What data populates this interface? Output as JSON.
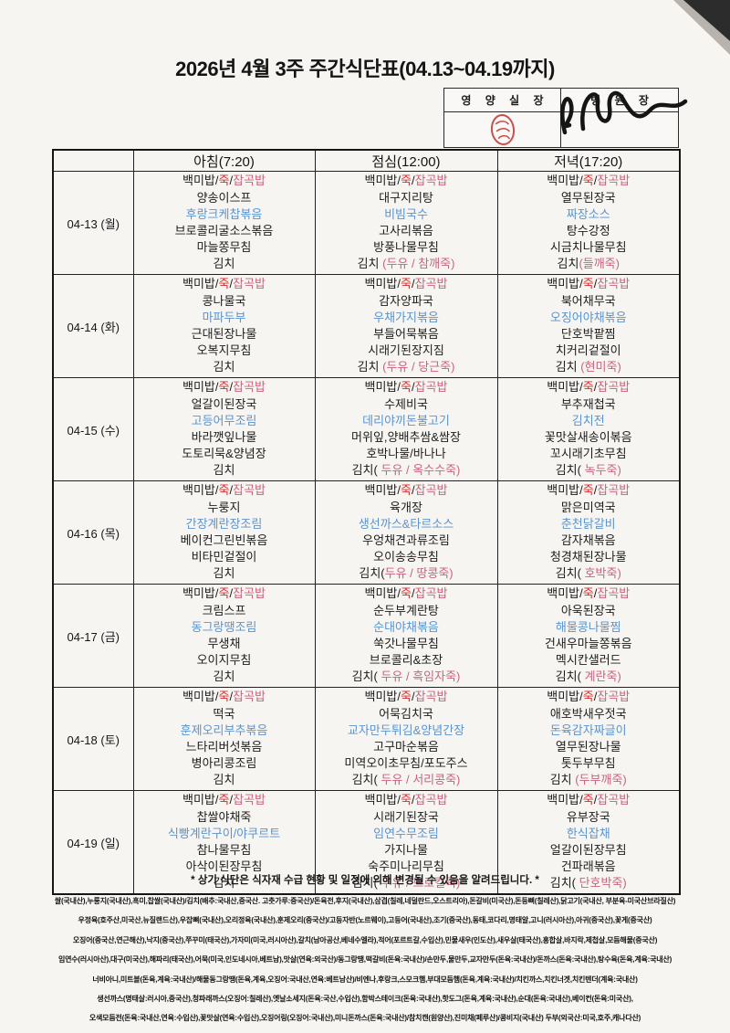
{
  "page": {
    "title": "2026년 4월 3주 주간식단표(04.13~04.19까지)"
  },
  "approval": {
    "nutrition_label": "영 양 실 장",
    "director_label": "병 원 장",
    "stamp_icon": "red-seal-stamp",
    "signature_icon": "handwritten-signature"
  },
  "colors": {
    "ink": "#1c1c1c",
    "porridge_red": "#d92b2b",
    "note_rose": "#c9637c",
    "main_dish_blue": "#5b93cd",
    "stamp_red": "#c23b34"
  },
  "table": {
    "headers": {
      "date": "",
      "breakfast": "아침(7:20)",
      "lunch": "점심(12:00)",
      "dinner": "저녁(17:20)"
    },
    "rice_line": [
      {
        "t": "백미밥",
        "c": "ink"
      },
      {
        "t": "/",
        "c": "ink"
      },
      {
        "t": "죽",
        "c": "red"
      },
      {
        "t": "/",
        "c": "ink"
      },
      {
        "t": "잡곡밥",
        "c": "rose"
      }
    ],
    "days": [
      {
        "date": "04-13 (월)",
        "breakfast": [
          {
            "t": "양송이스프"
          },
          {
            "t": "후랑크케찹볶음",
            "s": "m"
          },
          {
            "t": "브로콜리굴소스볶음"
          },
          {
            "t": "마늘쫑무침"
          },
          {
            "t": "김치"
          }
        ],
        "lunch": [
          {
            "t": "대구지리탕"
          },
          {
            "t": "비빔국수",
            "s": "m"
          },
          {
            "t": "고사리볶음"
          },
          {
            "t": "방풍나물무침"
          },
          {
            "t": "김치 ",
            "n": "(두유 / 참깨죽)"
          }
        ],
        "dinner": [
          {
            "t": "열무된장국"
          },
          {
            "t": "짜장소스",
            "s": "m"
          },
          {
            "t": "탕수강정"
          },
          {
            "t": "시금치나물무침"
          },
          {
            "t": "김치",
            "n": "(들깨죽)"
          }
        ]
      },
      {
        "date": "04-14 (화)",
        "breakfast": [
          {
            "t": "콩나물국"
          },
          {
            "t": "마파두부",
            "s": "m"
          },
          {
            "t": "근대된장나물"
          },
          {
            "t": "오복지무침"
          },
          {
            "t": "김치"
          }
        ],
        "lunch": [
          {
            "t": "감자양파국"
          },
          {
            "t": "우채가지볶음",
            "s": "m"
          },
          {
            "t": "부들어묵볶음"
          },
          {
            "t": "시래기된장지짐"
          },
          {
            "t": "김치 ",
            "n": "(두유 / 당근죽)"
          }
        ],
        "dinner": [
          {
            "t": "북어채무국"
          },
          {
            "t": "오징어야채볶음",
            "s": "m"
          },
          {
            "t": "단호박팥찜"
          },
          {
            "t": "치커리겉절이"
          },
          {
            "t": "김치 ",
            "n": "(현미죽)"
          }
        ]
      },
      {
        "date": "04-15 (수)",
        "breakfast": [
          {
            "t": "얼갈이된장국"
          },
          {
            "t": "고등어무조림",
            "s": "m"
          },
          {
            "t": "바라깻잎나물"
          },
          {
            "t": "도토리묵&양념장"
          },
          {
            "t": "김치"
          }
        ],
        "lunch": [
          {
            "t": "수제비국"
          },
          {
            "t": "데리야끼돈불고기",
            "s": "m"
          },
          {
            "t": "머위잎,양배추쌈&쌈장"
          },
          {
            "t": "호박나물/바나나"
          },
          {
            "t": "김치(",
            "n": " 두유 / 옥수수죽)"
          }
        ],
        "dinner": [
          {
            "t": "부추재첩국"
          },
          {
            "t": "김치전",
            "s": "m"
          },
          {
            "t": "꽃맛살새송이볶음"
          },
          {
            "t": "꼬시래기초무침"
          },
          {
            "t": "김치(",
            "n": " 녹두죽)"
          }
        ]
      },
      {
        "date": "04-16 (목)",
        "breakfast": [
          {
            "t": "누룽지"
          },
          {
            "t": "간장계란장조림",
            "s": "m"
          },
          {
            "t": "베이컨그린빈볶음"
          },
          {
            "t": "비타민겉절이"
          },
          {
            "t": "김치"
          }
        ],
        "lunch": [
          {
            "t": "육개장"
          },
          {
            "t": "생선까스&타르소스",
            "s": "m"
          },
          {
            "t": "우엉채견과류조림"
          },
          {
            "t": "오이송송무침"
          },
          {
            "t": "김치(",
            "n": "두유 / 땅콩죽)"
          }
        ],
        "dinner": [
          {
            "t": "맑은미역국"
          },
          {
            "t": "춘천닭갈비",
            "s": "m"
          },
          {
            "t": "감자채볶음"
          },
          {
            "t": "청경채된장나물"
          },
          {
            "t": "김치(",
            "n": " 호박죽)"
          }
        ]
      },
      {
        "date": "04-17 (금)",
        "breakfast": [
          {
            "t": "크림스프"
          },
          {
            "t": "동그랑땡조림",
            "s": "m"
          },
          {
            "t": "무생채"
          },
          {
            "t": "오이지무침"
          },
          {
            "t": "김치"
          }
        ],
        "lunch": [
          {
            "t": "순두부계란탕"
          },
          {
            "t": "순대야채볶음",
            "s": "m"
          },
          {
            "t": "쑥갓나물무침"
          },
          {
            "t": "브로콜리&초장"
          },
          {
            "t": "김치(",
            "n": " 두유 / 흑임자죽)"
          }
        ],
        "dinner": [
          {
            "t": "아욱된장국"
          },
          {
            "t": "해물콩나물찜",
            "s": "m"
          },
          {
            "t": "건새우마늘쫑볶음"
          },
          {
            "t": "멕시칸샐러드"
          },
          {
            "t": "김치(",
            "n": " 계란죽)"
          }
        ]
      },
      {
        "date": "04-18 (토)",
        "breakfast": [
          {
            "t": "떡국"
          },
          {
            "t": "훈제오리부추볶음",
            "s": "m"
          },
          {
            "t": "느타리버섯볶음"
          },
          {
            "t": "병아리콩조림"
          },
          {
            "t": "김치"
          }
        ],
        "lunch": [
          {
            "t": "어묵김치국"
          },
          {
            "t": "교자만두튀김&양념간장",
            "s": "m"
          },
          {
            "t": "고구마순볶음"
          },
          {
            "t": "미역오이초무침/포도주스"
          },
          {
            "t": "김치(",
            "n": " 두유 / 서리콩죽)"
          }
        ],
        "dinner": [
          {
            "t": "애호박새우젓국"
          },
          {
            "t": "돈육감자짜글이",
            "s": "m"
          },
          {
            "t": "열무된장나물"
          },
          {
            "t": "톳두부무침"
          },
          {
            "t": "김치 ",
            "n": "(두부깨죽)"
          }
        ]
      },
      {
        "date": "04-19 (일)",
        "breakfast": [
          {
            "t": "찹쌀야채죽"
          },
          {
            "t": "식빵계란구이/야쿠르트",
            "s": "m"
          },
          {
            "t": "참나물무침"
          },
          {
            "t": "아삭이된장무침"
          },
          {
            "t": "김치"
          }
        ],
        "lunch": [
          {
            "t": "시래기된장국"
          },
          {
            "t": "임연수무조림",
            "s": "m"
          },
          {
            "t": "가지나물"
          },
          {
            "t": "숙주미나리무침"
          },
          {
            "t": "김치(",
            "n": " 두유 / 브로컬죽)"
          }
        ],
        "dinner": [
          {
            "t": "유부장국"
          },
          {
            "t": "한식잡채",
            "s": "m"
          },
          {
            "t": "얼갈이된장무침"
          },
          {
            "t": "건파래볶음"
          },
          {
            "t": "김치(",
            "n": " 단호박죽)"
          }
        ]
      }
    ]
  },
  "note": "* 상기 식단은 식자재 수급 현황 및 일정에 의해 변경될 수 있음을 알려드립니다. *",
  "origin_lines": [
    "쌀(국내산),누룽지(국내산),흑미,찹쌀(국내산)/김치(배추:국내산,중국산. 고춧가루:중국산)/돈육전,후지(국내산),삼겹(칠레,네덜란드,오스트리아),돈갈비(미국산),돈등뼈(칠레산),닭고기(국내산, 부분육-미국산브라질산)",
    "우정육(호주산,미국산,뉴질랜드산),우잡뼈(국내산),오리정육(국내산),훈제오리(중국산)/고등자반(노르웨이),고등어(국내산),조기(중국산),동태,코다리,명태알,고니(러시아산),아귀(중국산),꽃게(중국산)",
    "오징어(중국산,연근해산),낙지(중국산),쭈꾸미(태국산),가자미(미국,러시아산),갈치(남아공산,베네수엘라),적어(포르트갈,수입산),민물새우(인도산),새우살(태국산),홍합살,바지락,제첩살,모듬해물(중국산)",
    "임연수(러시아산),대구(미국산),해파리(태국산),어묵(미국,인도네시아,베트남),맛살(연육:외국산)/동그랑땡,떡갈비(돈육:국내산)/손만두,물만두,교자만두(돈육:국내산)/돈까스(돈육:국내산),탕수육(돈육,계육:국내산)",
    "너비아니,미트볼(돈육,계육:국내산)/해물동그랑땡(돈육,계육,오징어:국내산,연육:베트남산)/비엔나,후랑크,스모크햄,부대모듬햄(돈육,계육:국내산)/치킨까스,치킨너겟,치킨텐더(계육:국내산)",
    "생선까스(명태살:러시아,중국산),청파래까스(오징어:칠레산),옛날소세지(돈육:국산,수입산),함박스테이크(돈육:국내산),핫도그(돈육,계육:국내산),순대(돈육:국내산),베이컨(돈육:미국산),",
    "오색모듬전(돈육:국내산,연육:수입산),꽃맛살(연육:수입산),오징어링(오징어:국내산),미니돈까스(돈육:국내산)/참치캔(원양산),진미채(페루산)/콩비지(국내산) 두부(외국산:미국,호주,캐나다산)"
  ]
}
